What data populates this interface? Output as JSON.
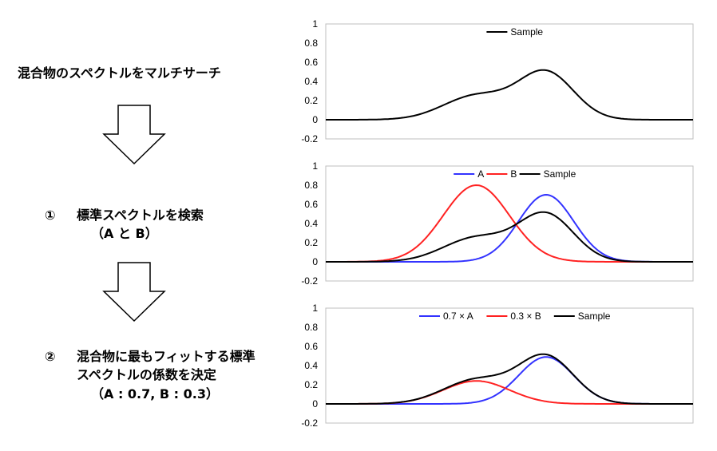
{
  "steps": {
    "intro": "混合物のスペクトルをマルチサーチ",
    "step1_num": "①",
    "step1_line1": "標準スペクトルを検索",
    "step1_line2": "（A と B）",
    "step2_num": "②",
    "step2_line1": "混合物に最もフィットする標準",
    "step2_line2": "スペクトルの係数を決定",
    "step2_line3": "（A : 0.7, B : 0.3）"
  },
  "colors": {
    "A": "#3333ff",
    "B": "#ff2222",
    "Sample": "#000000",
    "axis": "#bfbfbf"
  },
  "icons": [
    "down-arrow-icon",
    "down-arrow-icon"
  ],
  "chart_data": [
    {
      "type": "line",
      "ylim": [
        -0.2,
        1
      ],
      "yticks": [
        "1",
        "0.8",
        "0.6",
        "0.4",
        "0.2",
        "0",
        "-0.2"
      ],
      "legend_position": "top-center",
      "series": [
        {
          "name": "Sample",
          "color": "#000000",
          "peaks": [
            {
              "center": 0.41,
              "width": 0.09,
              "height": 0.25
            },
            {
              "center": 0.6,
              "width": 0.075,
              "height": 0.49
            }
          ]
        }
      ]
    },
    {
      "type": "line",
      "ylim": [
        -0.2,
        1
      ],
      "yticks": [
        "1",
        "0.8",
        "0.6",
        "0.4",
        "0.2",
        "0",
        "-0.2"
      ],
      "legend_position": "top-center",
      "series": [
        {
          "name": "A",
          "color": "#3333ff",
          "peaks": [
            {
              "center": 0.6,
              "width": 0.075,
              "height": 0.7
            }
          ]
        },
        {
          "name": "B",
          "color": "#ff2222",
          "peaks": [
            {
              "center": 0.41,
              "width": 0.09,
              "height": 0.8
            }
          ]
        },
        {
          "name": "Sample",
          "color": "#000000",
          "peaks": [
            {
              "center": 0.41,
              "width": 0.09,
              "height": 0.25
            },
            {
              "center": 0.6,
              "width": 0.075,
              "height": 0.49
            }
          ]
        }
      ]
    },
    {
      "type": "line",
      "ylim": [
        -0.2,
        1
      ],
      "yticks": [
        "1",
        "0.8",
        "0.6",
        "0.4",
        "0.2",
        "0",
        "-0.2"
      ],
      "legend_position": "top-center",
      "series": [
        {
          "name": "0.7 × A",
          "color": "#3333ff",
          "peaks": [
            {
              "center": 0.6,
              "width": 0.075,
              "height": 0.49
            }
          ]
        },
        {
          "name": "0.3 × B",
          "color": "#ff2222",
          "peaks": [
            {
              "center": 0.41,
              "width": 0.09,
              "height": 0.24
            }
          ]
        },
        {
          "name": "Sample",
          "color": "#000000",
          "peaks": [
            {
              "center": 0.41,
              "width": 0.09,
              "height": 0.25
            },
            {
              "center": 0.6,
              "width": 0.075,
              "height": 0.49
            }
          ]
        }
      ]
    }
  ]
}
